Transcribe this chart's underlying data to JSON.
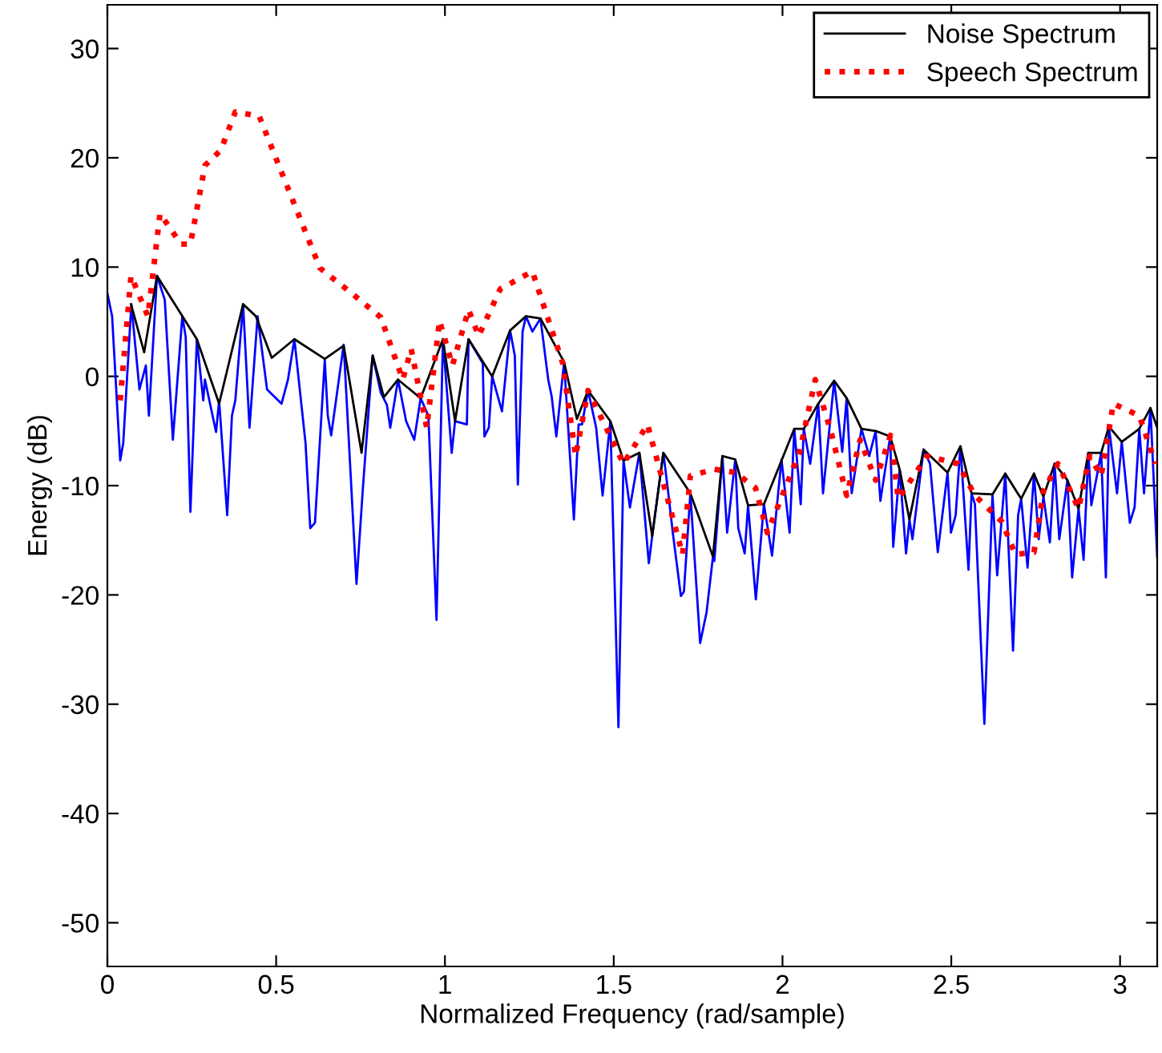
{
  "chart_data": {
    "type": "line",
    "xlabel": "Normalized Frequency (rad/sample)",
    "ylabel": "Energy (dB)",
    "xlim": [
      0,
      3.11
    ],
    "ylim": [
      -54,
      34
    ],
    "xticks": [
      0,
      0.5,
      1,
      1.5,
      2,
      2.5,
      3
    ],
    "yticks": [
      -50,
      -40,
      -30,
      -20,
      -10,
      0,
      10,
      20,
      30
    ],
    "grid": false,
    "legend": "top right",
    "marker": "none",
    "series": [
      {
        "name": "Noise Spectrum",
        "color": "#000000",
        "line_style": "solid",
        "x": [
          0.07,
          0.109,
          0.147,
          0.265,
          0.331,
          0.402,
          0.44,
          0.487,
          0.554,
          0.644,
          0.7,
          0.753,
          0.786,
          0.819,
          0.861,
          0.928,
          0.994,
          1.03,
          1.07,
          1.14,
          1.193,
          1.24,
          1.283,
          1.353,
          1.391,
          1.424,
          1.49,
          1.529,
          1.576,
          1.614,
          1.647,
          1.727,
          1.794,
          1.822,
          1.86,
          1.898,
          1.945,
          2.035,
          2.063,
          2.106,
          2.153,
          2.19,
          2.234,
          2.276,
          2.319,
          2.347,
          2.376,
          2.418,
          2.489,
          2.527,
          2.56,
          2.622,
          2.66,
          2.707,
          2.745,
          2.773,
          2.806,
          2.844,
          2.877,
          2.906,
          2.944,
          2.967,
          3.005,
          3.057,
          3.09,
          3.11
        ],
        "values": [
          6.6,
          2.2,
          9.2,
          3.4,
          -2.5,
          6.6,
          5.5,
          1.7,
          3.4,
          1.6,
          2.8,
          -7.0,
          1.9,
          -1.9,
          -0.3,
          -2.0,
          3.4,
          -4.1,
          3.4,
          0,
          4.2,
          5.5,
          5.3,
          1.3,
          -3.9,
          -1.3,
          -4.1,
          -7.7,
          -7.0,
          -14.6,
          -7.0,
          -10.7,
          -16.5,
          -7.3,
          -7.6,
          -11.8,
          -11.7,
          -4.8,
          -4.8,
          -2.5,
          -0.4,
          -2.0,
          -4.8,
          -5.0,
          -5.5,
          -8.5,
          -13.1,
          -6.7,
          -8.8,
          -6.4,
          -10.7,
          -10.8,
          -8.9,
          -11.2,
          -8.9,
          -11.0,
          -8.0,
          -9.5,
          -12.1,
          -7.0,
          -7.0,
          -4.6,
          -6.0,
          -4.8,
          -2.9,
          -4.7
        ]
      },
      {
        "name": "Speech Spectrum",
        "color": "#ff0000",
        "line_style": "dotted",
        "x": [
          0.038,
          0.07,
          0.12,
          0.156,
          0.218,
          0.246,
          0.289,
          0.336,
          0.379,
          0.45,
          0.535,
          0.63,
          0.724,
          0.81,
          0.875,
          0.9,
          0.946,
          0.984,
          1.022,
          1.07,
          1.1,
          1.164,
          1.259,
          1.349,
          1.387,
          1.424,
          1.529,
          1.6,
          1.704,
          1.727,
          1.798,
          1.86,
          1.92,
          1.955,
          2.05,
          2.097,
          2.144,
          2.19,
          2.23,
          2.276,
          2.32,
          2.343,
          2.428,
          2.52,
          2.57,
          2.65,
          2.69,
          2.745,
          2.773,
          2.816,
          2.877,
          2.91,
          2.944,
          2.98,
          3.057,
          3.105
        ],
        "values": [
          -2.2,
          9.2,
          5.5,
          14.9,
          12.1,
          12.1,
          19.3,
          20.7,
          24.2,
          23.8,
          17.2,
          9.9,
          7.6,
          5.4,
          -0.3,
          2.5,
          -4.7,
          5.1,
          1.0,
          6.1,
          3.7,
          8.0,
          9.6,
          1.2,
          -7.3,
          -1.3,
          -8.0,
          -4.4,
          -16.3,
          -9.1,
          -8.5,
          -8.8,
          -10.2,
          -14.3,
          -7.0,
          -0.3,
          -5.1,
          -10.9,
          -5.8,
          -9.5,
          -5.4,
          -11.2,
          -7.3,
          -8.0,
          -10.9,
          -13.3,
          -16.3,
          -16.1,
          -10.5,
          -8.0,
          -12.1,
          -7.3,
          -9.1,
          -2.5,
          -3.6,
          -8.0
        ]
      },
      {
        "color": "#0000ff",
        "line_style": "solid",
        "x": [
          0,
          0.014,
          0.038,
          0.047,
          0.071,
          0.095,
          0.114,
          0.123,
          0.147,
          0.17,
          0.194,
          0.222,
          0.232,
          0.246,
          0.265,
          0.284,
          0.289,
          0.322,
          0.331,
          0.355,
          0.369,
          0.379,
          0.402,
          0.421,
          0.445,
          0.473,
          0.516,
          0.535,
          0.554,
          0.587,
          0.601,
          0.615,
          0.644,
          0.653,
          0.663,
          0.7,
          0.738,
          0.757,
          0.786,
          0.81,
          0.828,
          0.838,
          0.861,
          0.885,
          0.909,
          0.928,
          0.951,
          0.975,
          0.994,
          1.02,
          1.03,
          1.065,
          1.07,
          1.112,
          1.117,
          1.13,
          1.14,
          1.169,
          1.193,
          1.207,
          1.216,
          1.23,
          1.24,
          1.259,
          1.283,
          1.306,
          1.316,
          1.33,
          1.353,
          1.382,
          1.396,
          1.406,
          1.424,
          1.448,
          1.467,
          1.49,
          1.514,
          1.529,
          1.548,
          1.576,
          1.604,
          1.614,
          1.647,
          1.661,
          1.675,
          1.699,
          1.708,
          1.727,
          1.756,
          1.775,
          1.794,
          1.798,
          1.822,
          1.836,
          1.86,
          1.869,
          1.888,
          1.898,
          1.921,
          1.945,
          1.969,
          1.997,
          2.021,
          2.035,
          2.054,
          2.063,
          2.082,
          2.106,
          2.12,
          2.153,
          2.177,
          2.19,
          2.205,
          2.234,
          2.257,
          2.276,
          2.29,
          2.319,
          2.328,
          2.347,
          2.366,
          2.376,
          2.385,
          2.418,
          2.437,
          2.46,
          2.489,
          2.499,
          2.513,
          2.527,
          2.551,
          2.56,
          2.57,
          2.598,
          2.622,
          2.636,
          2.66,
          2.683,
          2.698,
          2.707,
          2.726,
          2.745,
          2.759,
          2.773,
          2.792,
          2.806,
          2.82,
          2.844,
          2.858,
          2.877,
          2.892,
          2.906,
          2.915,
          2.944,
          2.958,
          2.967,
          2.991,
          3.005,
          3.029,
          3.043,
          3.057,
          3.071,
          3.09,
          3.11
        ],
        "values": [
          7.6,
          5.5,
          -7.7,
          -6.1,
          6.6,
          -1.2,
          1.0,
          -3.6,
          9.2,
          7.0,
          -5.8,
          5.5,
          3.6,
          -12.4,
          3.4,
          -2.2,
          -0.3,
          -5.1,
          -2.2,
          -12.7,
          -3.6,
          -2.2,
          6.6,
          -4.7,
          5.5,
          -1.2,
          -2.5,
          -0.3,
          3.4,
          -6.1,
          -13.9,
          -13.4,
          1.5,
          -3.6,
          -5.4,
          2.9,
          -19.0,
          -10.2,
          1.9,
          -1.5,
          -2.6,
          -4.7,
          -0.3,
          -4.1,
          -5.8,
          -2.0,
          -3.6,
          -22.3,
          3.4,
          -7.0,
          -4.1,
          -4.4,
          3.4,
          1.2,
          -5.5,
          -4.7,
          0,
          -3.2,
          4.2,
          1.9,
          -9.9,
          4.1,
          5.5,
          4.1,
          5.3,
          -0.3,
          -1.8,
          -5.5,
          1.3,
          -13.1,
          -4.4,
          -4.4,
          -1.3,
          -4.7,
          -10.9,
          -4.1,
          -32.1,
          -7.7,
          -12.0,
          -7.0,
          -17.1,
          -14.6,
          -7.0,
          -10.5,
          -14.3,
          -20.1,
          -19.7,
          -10.7,
          -24.4,
          -21.6,
          -16.5,
          -16.9,
          -7.3,
          -14.3,
          -7.6,
          -13.9,
          -16.2,
          -11.8,
          -20.4,
          -11.7,
          -16.4,
          -7.6,
          -14.3,
          -4.8,
          -11.7,
          -4.8,
          -8.0,
          -2.5,
          -10.7,
          -0.4,
          -6.9,
          -2.0,
          -10.7,
          -4.8,
          -7.3,
          -5.0,
          -11.4,
          -5.5,
          -15.6,
          -8.5,
          -16.2,
          -13.1,
          -14.9,
          -6.7,
          -8.0,
          -16.1,
          -8.8,
          -14.3,
          -12.7,
          -6.4,
          -17.7,
          -10.7,
          -11.7,
          -31.8,
          -10.8,
          -18.2,
          -8.9,
          -25.1,
          -12.7,
          -11.2,
          -17.5,
          -8.9,
          -14.9,
          -11.0,
          -15.2,
          -8.0,
          -14.9,
          -9.5,
          -18.4,
          -12.1,
          -16.8,
          -7.0,
          -11.8,
          -7.0,
          -18.4,
          -4.6,
          -10.7,
          -6.0,
          -13.4,
          -12.0,
          -4.8,
          -10.7,
          -2.9,
          -16.5
        ]
      }
    ]
  }
}
